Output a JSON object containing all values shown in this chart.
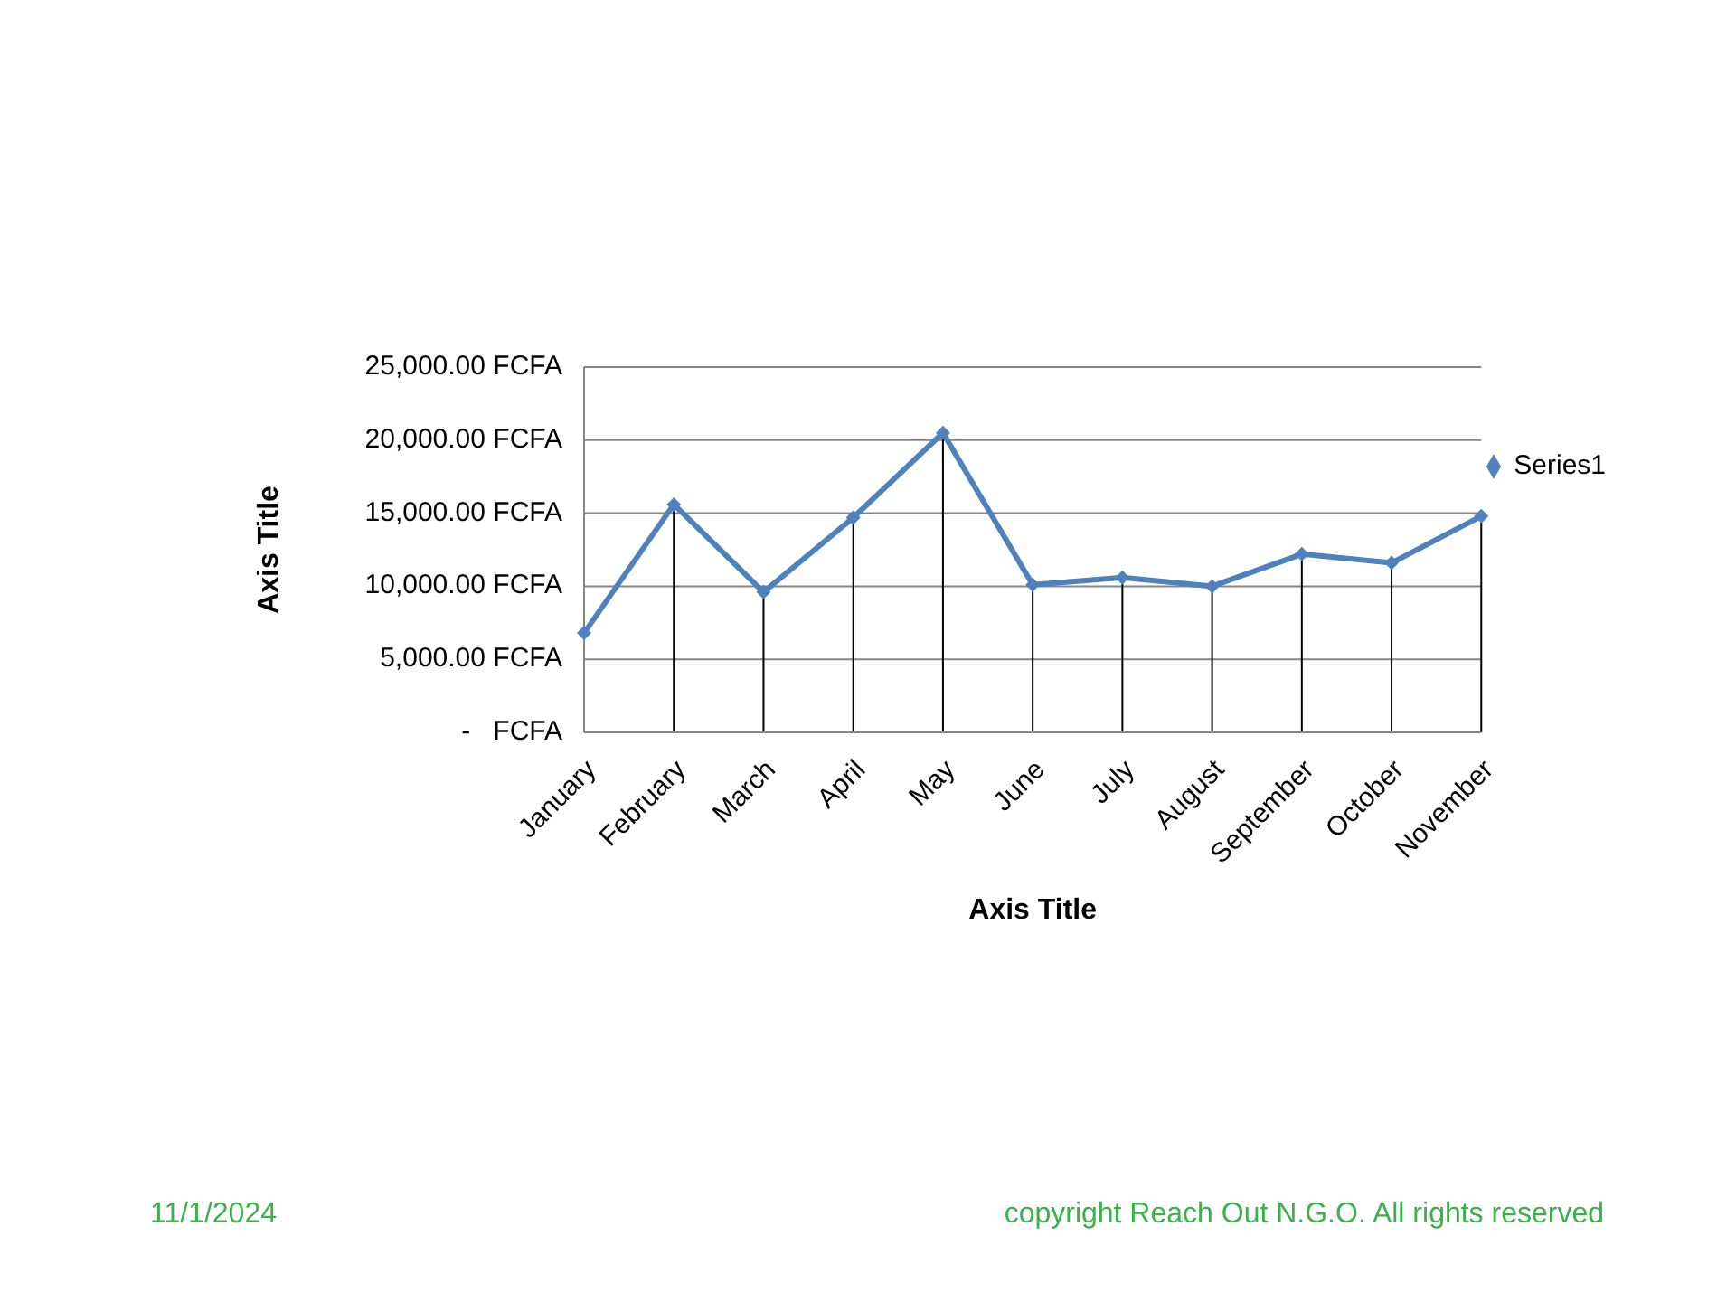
{
  "chart_data": {
    "type": "line",
    "xlabel": "Axis Title",
    "ylabel": "Axis Title",
    "categories": [
      "January",
      "February",
      "March",
      "April",
      "May",
      "June",
      "July",
      "August",
      "September",
      "October",
      "November"
    ],
    "series": [
      {
        "name": "Series1",
        "color": "#4f81bd",
        "values": [
          6800,
          15600,
          9600,
          14700,
          20500,
          10100,
          10600,
          10000,
          12200,
          11600,
          14800
        ],
        "errors": [
          [
            0,
            6800
          ],
          [
            0,
            15600
          ],
          [
            0,
            9600
          ],
          [
            0,
            14700
          ],
          [
            0,
            20500
          ],
          [
            0,
            10100
          ],
          [
            0,
            10600
          ],
          [
            0,
            10000
          ],
          [
            0,
            12200
          ],
          [
            0,
            11600
          ],
          [
            0,
            14800
          ]
        ]
      }
    ],
    "ylim": [
      0,
      25000
    ],
    "yticks": [
      {
        "value": 0,
        "label": "-   FCFA"
      },
      {
        "value": 5000,
        "label": "5,000.00 FCFA"
      },
      {
        "value": 10000,
        "label": "10,000.00 FCFA"
      },
      {
        "value": 15000,
        "label": "15,000.00 FCFA"
      },
      {
        "value": 20000,
        "label": "20,000.00 FCFA"
      },
      {
        "value": 25000,
        "label": "25,000.00 FCFA"
      }
    ],
    "grid": "y",
    "legend": "right",
    "marker": "diamond",
    "line_style": "solid",
    "annotations": [
      "11/1/2024",
      "copyright Reach Out N.G.O. All rights reserved"
    ]
  }
}
